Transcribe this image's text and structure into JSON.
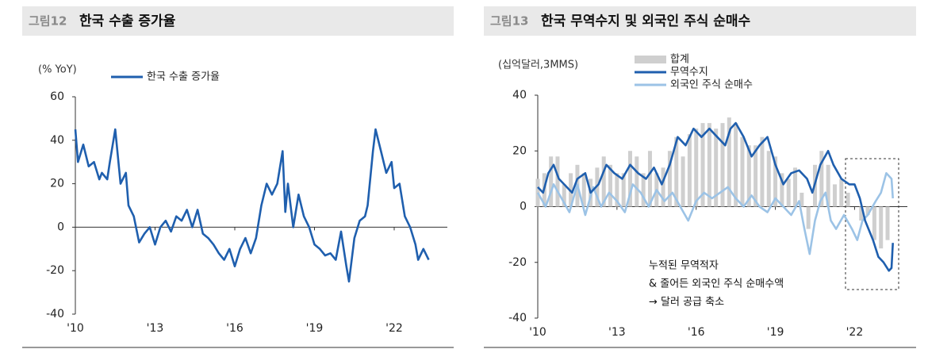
{
  "chart_data": [
    {
      "type": "line",
      "figure_label": "그림12",
      "title": "한국 수출 증가율",
      "y_unit_label": "(% YoY)",
      "xlim": [
        2010,
        2024
      ],
      "ylim": [
        -40,
        60
      ],
      "xticks": [
        {
          "value": 2010,
          "label": "'10"
        },
        {
          "value": 2013,
          "label": "'13"
        },
        {
          "value": 2016,
          "label": "'16"
        },
        {
          "value": 2019,
          "label": "'19"
        },
        {
          "value": 2022,
          "label": "'22"
        }
      ],
      "yticks": [
        -40,
        -20,
        0,
        20,
        40,
        60
      ],
      "series": [
        {
          "name": "한국 수출 증가율",
          "type": "line",
          "color": "#1f5fae",
          "x": [
            2010.0,
            2010.1,
            2010.3,
            2010.5,
            2010.7,
            2010.9,
            2011.0,
            2011.2,
            2011.3,
            2011.5,
            2011.7,
            2011.9,
            2012.0,
            2012.2,
            2012.4,
            2012.6,
            2012.8,
            2013.0,
            2013.2,
            2013.4,
            2013.6,
            2013.8,
            2014.0,
            2014.2,
            2014.4,
            2014.6,
            2014.8,
            2015.0,
            2015.2,
            2015.4,
            2015.6,
            2015.8,
            2016.0,
            2016.2,
            2016.4,
            2016.6,
            2016.8,
            2017.0,
            2017.2,
            2017.4,
            2017.6,
            2017.8,
            2017.9,
            2018.0,
            2018.2,
            2018.4,
            2018.6,
            2018.8,
            2019.0,
            2019.2,
            2019.4,
            2019.6,
            2019.8,
            2020.0,
            2020.2,
            2020.3,
            2020.5,
            2020.7,
            2020.9,
            2021.0,
            2021.2,
            2021.3,
            2021.5,
            2021.7,
            2021.9,
            2022.0,
            2022.2,
            2022.4,
            2022.6,
            2022.8,
            2022.9,
            2023.1,
            2023.3
          ],
          "values": [
            45,
            30,
            38,
            28,
            30,
            22,
            25,
            22,
            30,
            45,
            20,
            25,
            10,
            5,
            -7,
            -3,
            0,
            -8,
            0,
            3,
            -2,
            5,
            3,
            8,
            0,
            8,
            -3,
            -5,
            -8,
            -12,
            -15,
            -10,
            -18,
            -10,
            -5,
            -12,
            -5,
            10,
            20,
            15,
            20,
            35,
            7,
            20,
            0,
            15,
            5,
            0,
            -8,
            -10,
            -13,
            -12,
            -15,
            -2,
            -18,
            -25,
            -5,
            3,
            5,
            10,
            35,
            45,
            35,
            25,
            30,
            18,
            20,
            5,
            0,
            -8,
            -15,
            -10,
            -15
          ]
        }
      ]
    },
    {
      "type": "combo",
      "figure_label": "그림13",
      "title": "한국 무역수지 및 외국인 주식 순매수",
      "y_unit_label": "(십억달러,3MMS)",
      "xlim": [
        2010,
        2024
      ],
      "ylim": [
        -40,
        40
      ],
      "xticks": [
        {
          "value": 2010,
          "label": "'10"
        },
        {
          "value": 2013,
          "label": "'13"
        },
        {
          "value": 2016,
          "label": "'16"
        },
        {
          "value": 2019,
          "label": "'19"
        },
        {
          "value": 2022,
          "label": "'22"
        }
      ],
      "yticks": [
        -40,
        -20,
        0,
        20,
        40
      ],
      "annotation": [
        "누적된 무역적자",
        "& 줄어든 외국인 주식 순매수액",
        "→ 달러 공급 축소"
      ],
      "series": [
        {
          "name": "합계",
          "type": "bar",
          "color": "#cfcfcf",
          "x": [
            2010.0,
            2010.25,
            2010.5,
            2010.75,
            2011.0,
            2011.25,
            2011.5,
            2011.75,
            2012.0,
            2012.25,
            2012.5,
            2012.75,
            2013.0,
            2013.25,
            2013.5,
            2013.75,
            2014.0,
            2014.25,
            2014.5,
            2014.75,
            2015.0,
            2015.25,
            2015.5,
            2015.75,
            2016.0,
            2016.25,
            2016.5,
            2016.75,
            2017.0,
            2017.25,
            2017.5,
            2017.75,
            2018.0,
            2018.25,
            2018.5,
            2018.75,
            2019.0,
            2019.25,
            2019.5,
            2019.75,
            2020.0,
            2020.25,
            2020.5,
            2020.75,
            2021.0,
            2021.25,
            2021.5,
            2021.75,
            2022.0,
            2022.25,
            2022.5,
            2022.75,
            2023.0,
            2023.25
          ],
          "values": [
            10,
            12,
            18,
            18,
            8,
            12,
            15,
            12,
            10,
            14,
            18,
            15,
            12,
            12,
            20,
            18,
            12,
            20,
            12,
            14,
            20,
            25,
            18,
            26,
            28,
            30,
            30,
            28,
            30,
            32,
            30,
            25,
            22,
            22,
            25,
            20,
            18,
            12,
            10,
            14,
            5,
            -8,
            15,
            20,
            15,
            8,
            10,
            5,
            0,
            -5,
            -3,
            -12,
            -15,
            -12
          ]
        },
        {
          "name": "무역수지",
          "type": "line",
          "color": "#1f5fae",
          "x": [
            2010.0,
            2010.2,
            2010.4,
            2010.6,
            2010.8,
            2011.0,
            2011.3,
            2011.5,
            2011.8,
            2012.0,
            2012.3,
            2012.6,
            2012.9,
            2013.2,
            2013.5,
            2013.8,
            2014.1,
            2014.4,
            2014.7,
            2015.0,
            2015.3,
            2015.6,
            2015.9,
            2016.2,
            2016.5,
            2016.8,
            2017.1,
            2017.3,
            2017.5,
            2017.8,
            2018.1,
            2018.4,
            2018.7,
            2019.0,
            2019.3,
            2019.6,
            2019.9,
            2020.2,
            2020.4,
            2020.7,
            2021.0,
            2021.2,
            2021.5,
            2021.8,
            2022.0,
            2022.2,
            2022.4,
            2022.7,
            2022.9,
            2023.1,
            2023.3,
            2023.4,
            2023.45
          ],
          "values": [
            7,
            5,
            12,
            15,
            10,
            8,
            5,
            10,
            12,
            5,
            8,
            15,
            12,
            10,
            15,
            12,
            10,
            14,
            8,
            15,
            25,
            22,
            28,
            25,
            28,
            25,
            22,
            28,
            30,
            25,
            18,
            22,
            25,
            15,
            8,
            12,
            13,
            10,
            5,
            15,
            20,
            15,
            10,
            8,
            8,
            3,
            -5,
            -12,
            -18,
            -20,
            -23,
            -22,
            -13
          ]
        },
        {
          "name": "외국인 주식 순매수",
          "type": "line",
          "color": "#9cc3e6",
          "x": [
            2010.0,
            2010.3,
            2010.6,
            2010.9,
            2011.2,
            2011.5,
            2011.8,
            2012.1,
            2012.4,
            2012.7,
            2013.0,
            2013.3,
            2013.6,
            2013.9,
            2014.2,
            2014.5,
            2014.8,
            2015.1,
            2015.4,
            2015.7,
            2016.0,
            2016.3,
            2016.6,
            2016.9,
            2017.2,
            2017.5,
            2017.8,
            2018.1,
            2018.4,
            2018.7,
            2019.0,
            2019.3,
            2019.6,
            2019.9,
            2020.1,
            2020.3,
            2020.5,
            2020.7,
            2020.9,
            2021.1,
            2021.3,
            2021.6,
            2021.9,
            2022.1,
            2022.3,
            2022.5,
            2022.8,
            2023.0,
            2023.2,
            2023.4,
            2023.45
          ],
          "values": [
            5,
            0,
            8,
            3,
            -2,
            8,
            -3,
            7,
            0,
            5,
            2,
            -2,
            8,
            5,
            0,
            6,
            2,
            5,
            0,
            -5,
            2,
            5,
            3,
            5,
            7,
            3,
            0,
            4,
            0,
            -2,
            3,
            0,
            -3,
            2,
            -8,
            -17,
            -5,
            2,
            5,
            -5,
            -8,
            -3,
            -8,
            -12,
            -5,
            -3,
            2,
            5,
            12,
            10,
            3
          ]
        }
      ]
    }
  ]
}
